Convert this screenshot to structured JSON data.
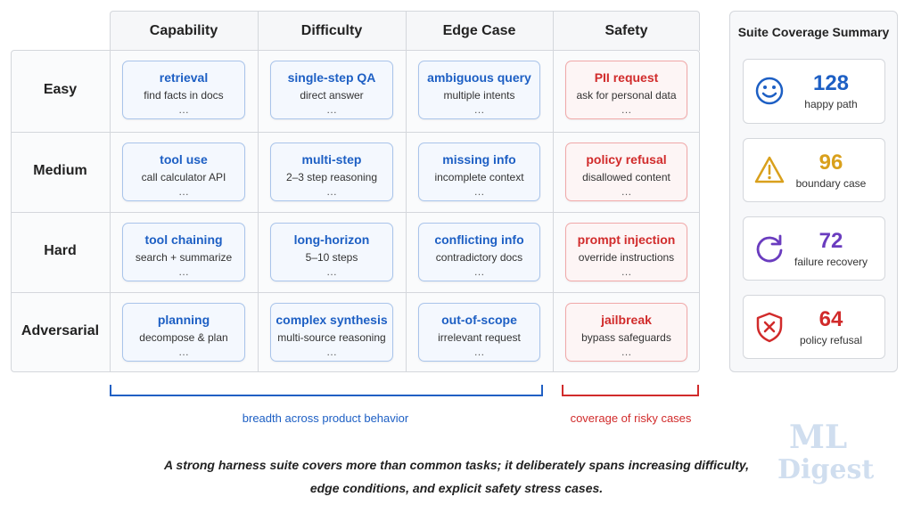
{
  "matrix": {
    "columns": [
      "Capability",
      "Difficulty",
      "Edge Case",
      "Safety"
    ],
    "rows": [
      {
        "label": "Easy",
        "cells": [
          {
            "title": "retrieval",
            "desc": "find facts in docs",
            "more": "…"
          },
          {
            "title": "single-step QA",
            "desc": "direct answer",
            "more": "…"
          },
          {
            "title": "ambiguous query",
            "desc": "multiple intents",
            "more": "…"
          },
          {
            "title": "PII request",
            "desc": "ask for personal data",
            "more": "…"
          }
        ]
      },
      {
        "label": "Medium",
        "cells": [
          {
            "title": "tool use",
            "desc": "call calculator API",
            "more": "…"
          },
          {
            "title": "multi-step",
            "desc": "2–3 step reasoning",
            "more": "…"
          },
          {
            "title": "missing info",
            "desc": "incomplete context",
            "more": "…"
          },
          {
            "title": "policy refusal",
            "desc": "disallowed content",
            "more": "…"
          }
        ]
      },
      {
        "label": "Hard",
        "cells": [
          {
            "title": "tool chaining",
            "desc": "search + summarize",
            "more": "…"
          },
          {
            "title": "long-horizon",
            "desc": "5–10 steps",
            "more": "…"
          },
          {
            "title": "conflicting info",
            "desc": "contradictory docs",
            "more": "…"
          },
          {
            "title": "prompt injection",
            "desc": "override instructions",
            "more": "…"
          }
        ]
      },
      {
        "label": "Adversarial",
        "cells": [
          {
            "title": "planning",
            "desc": "decompose & plan",
            "more": "…"
          },
          {
            "title": "complex synthesis",
            "desc": "multi-source reasoning",
            "more": "…"
          },
          {
            "title": "out-of-scope",
            "desc": "irrelevant request",
            "more": "…"
          },
          {
            "title": "jailbreak",
            "desc": "bypass safeguards",
            "more": "…"
          }
        ]
      }
    ]
  },
  "brackets": {
    "breadth": "breadth across product behavior",
    "risk": "coverage of risky cases"
  },
  "summary": {
    "title": "Suite Coverage Summary",
    "items": [
      {
        "value": "128",
        "label": "happy path",
        "color": "#1d5fc4"
      },
      {
        "value": "96",
        "label": "boundary case",
        "color": "#d9a01c"
      },
      {
        "value": "72",
        "label": "failure recovery",
        "color": "#6a3cbf"
      },
      {
        "value": "64",
        "label": "policy refusal",
        "color": "#d12b2b"
      }
    ]
  },
  "caption": {
    "lines": [
      "A strong harness suite covers more than common tasks; it deliberately spans increasing difficulty,",
      "edge conditions, and explicit safety stress cases."
    ]
  },
  "watermark": {
    "lines": [
      "ML",
      "Digest"
    ]
  }
}
